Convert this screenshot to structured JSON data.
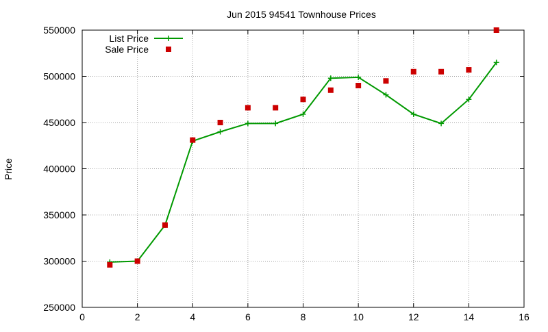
{
  "chart_data": {
    "type": "line",
    "title": "Jun 2015 94541 Townhouse Prices",
    "xlabel": "",
    "ylabel": "Price",
    "xlim": [
      0,
      16
    ],
    "ylim": [
      250000,
      550000
    ],
    "xticks": [
      0,
      2,
      4,
      6,
      8,
      10,
      12,
      14,
      16
    ],
    "yticks": [
      250000,
      300000,
      350000,
      400000,
      450000,
      500000,
      550000
    ],
    "grid": true,
    "legend_position": "top-left",
    "series": [
      {
        "name": "List Price",
        "style": "line-with-plus-markers",
        "color": "#009900",
        "x": [
          1,
          2,
          3,
          4,
          5,
          6,
          7,
          8,
          9,
          10,
          11,
          12,
          13,
          14,
          15
        ],
        "y": [
          299000,
          300000,
          339000,
          430000,
          440000,
          449000,
          449000,
          459000,
          498000,
          499000,
          480000,
          459000,
          449000,
          475000,
          515000
        ]
      },
      {
        "name": "Sale Price",
        "style": "square-markers",
        "color": "#cc0000",
        "x": [
          1,
          2,
          3,
          4,
          5,
          6,
          7,
          8,
          9,
          10,
          11,
          12,
          13,
          14,
          15
        ],
        "y": [
          296000,
          300000,
          339000,
          431000,
          450000,
          466000,
          466000,
          475000,
          485000,
          490000,
          495000,
          505000,
          505000,
          507000,
          550000
        ]
      }
    ]
  }
}
